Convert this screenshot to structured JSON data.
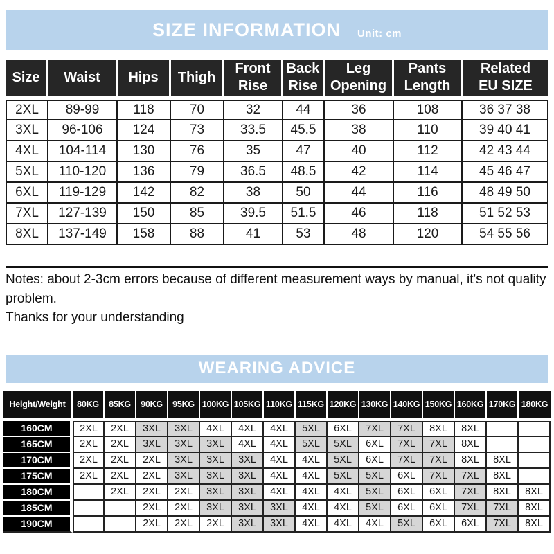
{
  "colors": {
    "band_blue": "#b8d3ec",
    "header_black": "#262626",
    "highlight_gray": "#d6d6d6",
    "grid_black": "#1a1a1a"
  },
  "size_section": {
    "title": "SIZE INFORMATION",
    "unit_label": "Unit: cm",
    "table": {
      "headers": [
        "Size",
        "Waist",
        "Hips",
        "Thigh",
        "Front\nRise",
        "Back\nRise",
        "Leg\nOpening",
        "Pants\nLength",
        "Related\nEU SIZE"
      ],
      "rows": [
        [
          "2XL",
          "89-99",
          "118",
          "70",
          "32",
          "44",
          "36",
          "108",
          "36 37 38"
        ],
        [
          "3XL",
          "96-106",
          "124",
          "73",
          "33.5",
          "45.5",
          "38",
          "110",
          "39 40 41"
        ],
        [
          "4XL",
          "104-114",
          "130",
          "76",
          "35",
          "47",
          "40",
          "112",
          "42 43 44"
        ],
        [
          "5XL",
          "110-120",
          "136",
          "79",
          "36.5",
          "48.5",
          "42",
          "114",
          "45 46 47"
        ],
        [
          "6XL",
          "119-129",
          "142",
          "82",
          "38",
          "50",
          "44",
          "116",
          "48 49 50"
        ],
        [
          "7XL",
          "127-139",
          "150",
          "85",
          "39.5",
          "51.5",
          "46",
          "118",
          "51 52 53"
        ],
        [
          "8XL",
          "137-149",
          "158",
          "88",
          "41",
          "53",
          "48",
          "120",
          "54 55 56"
        ]
      ]
    },
    "notes": "Notes: about 2-3cm errors because of different measurement ways by manual, it's not quality problem.",
    "thanks": "Thanks for your understanding"
  },
  "wearing_section": {
    "title": "WEARING ADVICE",
    "table": {
      "corner_header": "Height/Weight",
      "weight_headers": [
        "80KG",
        "85KG",
        "90KG",
        "95KG",
        "100KG",
        "105KG",
        "110KG",
        "115KG",
        "120KG",
        "130KG",
        "140KG",
        "150KG",
        "160KG",
        "170KG",
        "180KG"
      ],
      "rows": [
        {
          "height": "160CM",
          "sizes": [
            "2XL",
            "2XL",
            "3XL",
            "3XL",
            "4XL",
            "4XL",
            "4XL",
            "5XL",
            "6XL",
            "7XL",
            "7XL",
            "8XL",
            "8XL",
            "",
            ""
          ]
        },
        {
          "height": "165CM",
          "sizes": [
            "2XL",
            "2XL",
            "3XL",
            "3XL",
            "3XL",
            "4XL",
            "4XL",
            "5XL",
            "5XL",
            "6XL",
            "7XL",
            "7XL",
            "8XL",
            "",
            ""
          ]
        },
        {
          "height": "170CM",
          "sizes": [
            "2XL",
            "2XL",
            "2XL",
            "3XL",
            "3XL",
            "3XL",
            "4XL",
            "4XL",
            "5XL",
            "6XL",
            "7XL",
            "7XL",
            "8XL",
            "8XL",
            ""
          ]
        },
        {
          "height": "175CM",
          "sizes": [
            "2XL",
            "2XL",
            "2XL",
            "3XL",
            "3XL",
            "3XL",
            "4XL",
            "4XL",
            "5XL",
            "5XL",
            "6XL",
            "7XL",
            "7XL",
            "8XL",
            ""
          ]
        },
        {
          "height": "180CM",
          "sizes": [
            "",
            "2XL",
            "2XL",
            "2XL",
            "3XL",
            "3XL",
            "4XL",
            "4XL",
            "4XL",
            "5XL",
            "6XL",
            "6XL",
            "7XL",
            "8XL",
            "8XL"
          ]
        },
        {
          "height": "185CM",
          "sizes": [
            "",
            "",
            "2XL",
            "2XL",
            "3XL",
            "3XL",
            "3XL",
            "4XL",
            "4XL",
            "5XL",
            "6XL",
            "6XL",
            "7XL",
            "7XL",
            "8XL"
          ]
        },
        {
          "height": "190CM",
          "sizes": [
            "",
            "",
            "2XL",
            "2XL",
            "2XL",
            "3XL",
            "3XL",
            "4XL",
            "4XL",
            "4XL",
            "5XL",
            "6XL",
            "6XL",
            "7XL",
            "8XL"
          ]
        }
      ],
      "highlight_note": "cells containing 3XL, 5XL or 7XL are shaded gray"
    }
  }
}
